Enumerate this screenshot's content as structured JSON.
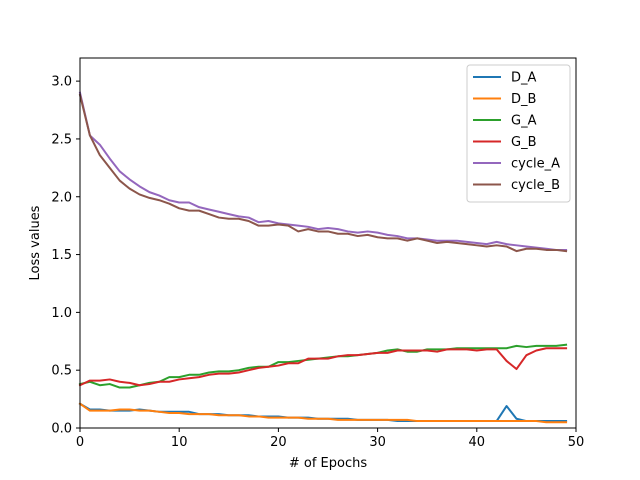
{
  "chart_data": {
    "type": "line",
    "title": "",
    "xlabel": "# of Epochs",
    "ylabel": "Loss values",
    "xlim": [
      0,
      50
    ],
    "ylim": [
      0,
      3.2
    ],
    "xticks": [
      0,
      10,
      20,
      30,
      40,
      50
    ],
    "yticks": [
      0.0,
      0.5,
      1.0,
      1.5,
      2.0,
      2.5,
      3.0
    ],
    "xtick_labels": [
      "0",
      "10",
      "20",
      "30",
      "40",
      "50"
    ],
    "ytick_labels": [
      "0.0",
      "0.5",
      "1.0",
      "1.5",
      "2.0",
      "2.5",
      "3.0"
    ],
    "grid": false,
    "legend_position": "top-right",
    "x": [
      0,
      1,
      2,
      3,
      4,
      5,
      6,
      7,
      8,
      9,
      10,
      11,
      12,
      13,
      14,
      15,
      16,
      17,
      18,
      19,
      20,
      21,
      22,
      23,
      24,
      25,
      26,
      27,
      28,
      29,
      30,
      31,
      32,
      33,
      34,
      35,
      36,
      37,
      38,
      39,
      40,
      41,
      42,
      43,
      44,
      45,
      46,
      47,
      48,
      49
    ],
    "series": [
      {
        "name": "D_A",
        "color": "#1f77b4",
        "values": [
          0.21,
          0.16,
          0.16,
          0.15,
          0.15,
          0.15,
          0.16,
          0.15,
          0.14,
          0.14,
          0.14,
          0.14,
          0.12,
          0.12,
          0.12,
          0.11,
          0.11,
          0.11,
          0.1,
          0.1,
          0.1,
          0.09,
          0.09,
          0.09,
          0.08,
          0.08,
          0.08,
          0.08,
          0.07,
          0.07,
          0.07,
          0.07,
          0.06,
          0.06,
          0.06,
          0.06,
          0.06,
          0.06,
          0.06,
          0.06,
          0.06,
          0.06,
          0.06,
          0.19,
          0.08,
          0.06,
          0.06,
          0.06,
          0.06,
          0.06
        ]
      },
      {
        "name": "D_B",
        "color": "#ff7f0e",
        "values": [
          0.21,
          0.15,
          0.15,
          0.15,
          0.16,
          0.16,
          0.15,
          0.15,
          0.14,
          0.13,
          0.13,
          0.12,
          0.12,
          0.12,
          0.11,
          0.11,
          0.11,
          0.1,
          0.1,
          0.09,
          0.09,
          0.09,
          0.09,
          0.08,
          0.08,
          0.08,
          0.07,
          0.07,
          0.07,
          0.07,
          0.07,
          0.07,
          0.07,
          0.07,
          0.06,
          0.06,
          0.06,
          0.06,
          0.06,
          0.06,
          0.06,
          0.06,
          0.06,
          0.06,
          0.06,
          0.06,
          0.06,
          0.05,
          0.05,
          0.05
        ]
      },
      {
        "name": "G_A",
        "color": "#2ca02c",
        "values": [
          0.38,
          0.4,
          0.37,
          0.38,
          0.35,
          0.35,
          0.37,
          0.39,
          0.4,
          0.44,
          0.44,
          0.46,
          0.46,
          0.48,
          0.49,
          0.49,
          0.5,
          0.52,
          0.53,
          0.53,
          0.57,
          0.57,
          0.58,
          0.59,
          0.6,
          0.61,
          0.62,
          0.62,
          0.63,
          0.64,
          0.65,
          0.67,
          0.68,
          0.66,
          0.66,
          0.68,
          0.68,
          0.68,
          0.69,
          0.69,
          0.69,
          0.69,
          0.69,
          0.69,
          0.71,
          0.7,
          0.71,
          0.71,
          0.71,
          0.72
        ]
      },
      {
        "name": "G_B",
        "color": "#d62728",
        "values": [
          0.37,
          0.41,
          0.41,
          0.42,
          0.4,
          0.39,
          0.37,
          0.38,
          0.4,
          0.4,
          0.42,
          0.43,
          0.44,
          0.46,
          0.47,
          0.47,
          0.48,
          0.5,
          0.52,
          0.53,
          0.54,
          0.56,
          0.56,
          0.6,
          0.6,
          0.6,
          0.62,
          0.63,
          0.63,
          0.64,
          0.65,
          0.65,
          0.67,
          0.67,
          0.67,
          0.67,
          0.66,
          0.68,
          0.68,
          0.68,
          0.67,
          0.68,
          0.68,
          0.58,
          0.51,
          0.63,
          0.67,
          0.69,
          0.69,
          0.69
        ]
      },
      {
        "name": "cycle_A",
        "color": "#9467bd",
        "values": [
          2.9,
          2.53,
          2.45,
          2.33,
          2.22,
          2.15,
          2.09,
          2.04,
          2.01,
          1.97,
          1.95,
          1.95,
          1.91,
          1.89,
          1.87,
          1.85,
          1.83,
          1.82,
          1.78,
          1.79,
          1.77,
          1.76,
          1.75,
          1.74,
          1.72,
          1.73,
          1.72,
          1.7,
          1.69,
          1.7,
          1.69,
          1.67,
          1.66,
          1.64,
          1.64,
          1.63,
          1.62,
          1.62,
          1.62,
          1.61,
          1.6,
          1.59,
          1.61,
          1.59,
          1.58,
          1.57,
          1.56,
          1.55,
          1.54,
          1.54
        ]
      },
      {
        "name": "cycle_B",
        "color": "#8c564b",
        "values": [
          2.88,
          2.53,
          2.36,
          2.25,
          2.14,
          2.07,
          2.02,
          1.99,
          1.97,
          1.94,
          1.9,
          1.88,
          1.88,
          1.85,
          1.82,
          1.81,
          1.81,
          1.79,
          1.75,
          1.75,
          1.76,
          1.75,
          1.7,
          1.72,
          1.7,
          1.7,
          1.68,
          1.68,
          1.66,
          1.67,
          1.65,
          1.64,
          1.64,
          1.62,
          1.64,
          1.62,
          1.6,
          1.61,
          1.6,
          1.59,
          1.58,
          1.57,
          1.58,
          1.57,
          1.53,
          1.55,
          1.55,
          1.54,
          1.54,
          1.53
        ]
      }
    ]
  }
}
